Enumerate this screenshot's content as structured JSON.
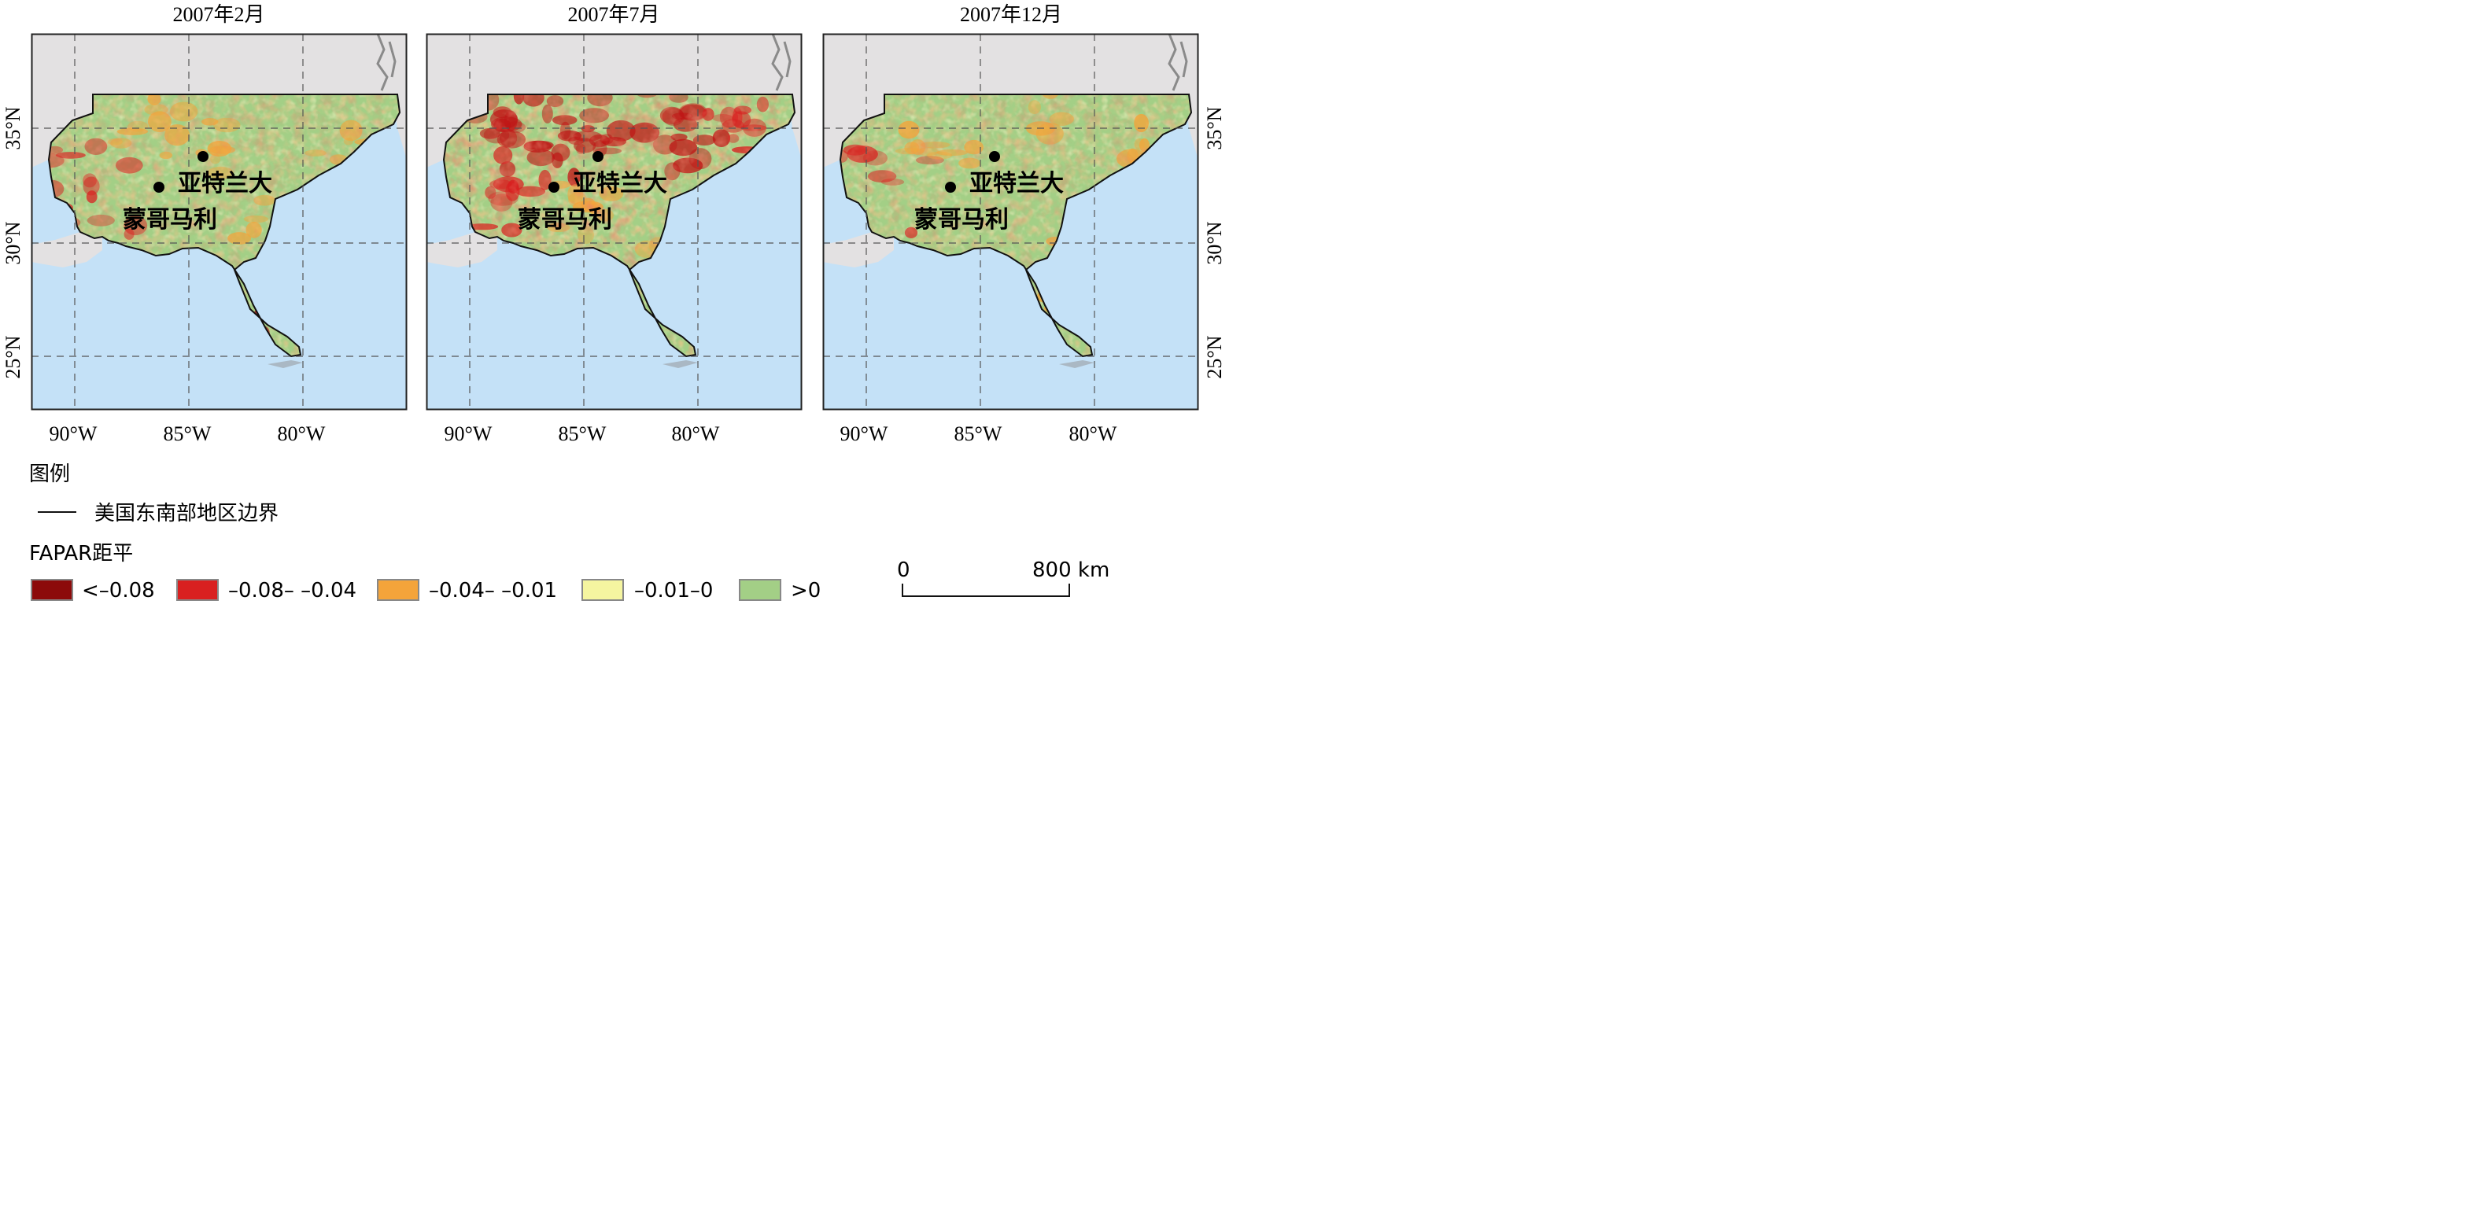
{
  "colors": {
    "land_outside": "#e3e1e2",
    "water": "#c4e1f7",
    "frame": "#222222",
    "grid": "#555555",
    "classes": [
      "#8c0a0a",
      "#d92020",
      "#f4a43a",
      "#f5f5a0",
      "#a3cf86"
    ]
  },
  "panels": [
    {
      "title": "2007年2月",
      "distribution": {
        "red": 0.12,
        "orange": 0.3,
        "yellow": 0.14,
        "green": 0.44
      },
      "hotspots": [
        "southwest Alabama/Mississippi",
        "south Florida"
      ]
    },
    {
      "title": "2007年7月",
      "distribution": {
        "dark_red": 0.04,
        "red": 0.22,
        "orange": 0.3,
        "yellow": 0.12,
        "green": 0.32
      },
      "hotspots": [
        "Tennessee",
        "northern Alabama",
        "Georgia piedmont",
        "Carolinas"
      ]
    },
    {
      "title": "2007年12月",
      "distribution": {
        "red": 0.1,
        "orange": 0.28,
        "yellow": 0.14,
        "green": 0.48
      },
      "hotspots": [
        "western Mississippi",
        "south Florida"
      ]
    }
  ],
  "axes": {
    "x_ticks": [
      "90°W",
      "85°W",
      "80°W"
    ],
    "y_ticks": [
      "35°N",
      "30°N",
      "25°N"
    ]
  },
  "cities": [
    {
      "name": "亚特兰大",
      "lon": -84.4,
      "lat": 33.7
    },
    {
      "name": "蒙哥马利",
      "lon": -86.3,
      "lat": 32.4
    }
  ],
  "legend": {
    "heading": "图例",
    "boundary_label": "美国东南部地区边界",
    "fapar_heading": "FAPAR距平",
    "classes": [
      "<–0.08",
      "–0.08– –0.04",
      "–0.04– –0.01",
      "–0.01–0",
      ">0"
    ]
  },
  "scalebar": {
    "start": "0",
    "end": "800 km"
  }
}
